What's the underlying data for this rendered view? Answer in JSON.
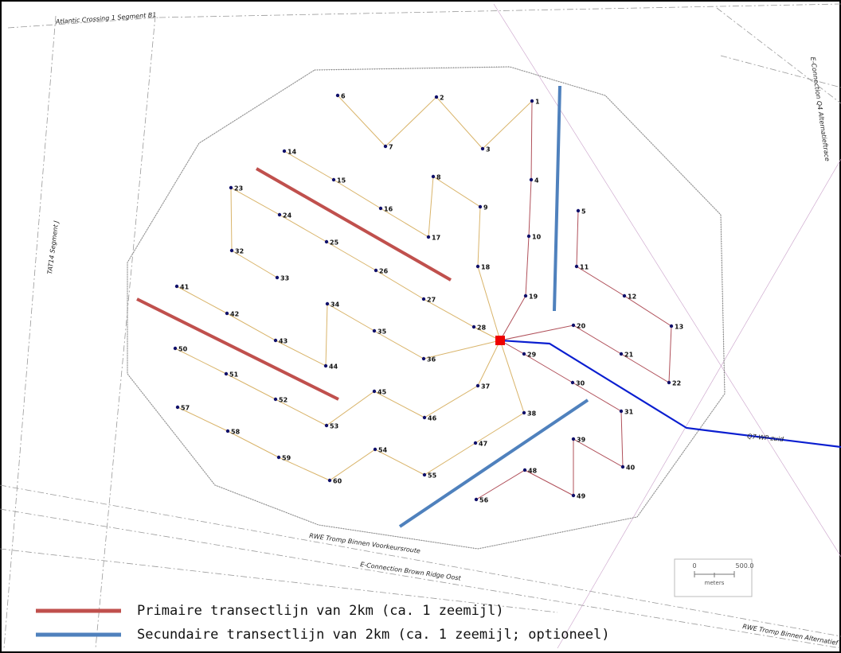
{
  "map": {
    "route_labels": [
      "Atlantic Crossing 1 Segment B1",
      "TAT14 Segment J",
      "E-Connection Q4 Alternatieftrace",
      "RWE Tromp Binnen Voorkeursroute",
      "E-Connection Brown Ridge Oost",
      "RWE Tromp Binnen Alternatief",
      "Q7-WP-zuid"
    ],
    "turbines": [
      "1",
      "2",
      "3",
      "4",
      "5",
      "6",
      "7",
      "8",
      "9",
      "10",
      "11",
      "12",
      "13",
      "14",
      "15",
      "16",
      "17",
      "18",
      "19",
      "20",
      "21",
      "22",
      "23",
      "24",
      "25",
      "26",
      "27",
      "28",
      "29",
      "30",
      "31",
      "32",
      "33",
      "34",
      "35",
      "36",
      "37",
      "38",
      "39",
      "40",
      "41",
      "42",
      "43",
      "44",
      "45",
      "46",
      "47",
      "48",
      "49",
      "50",
      "51",
      "52",
      "53",
      "54",
      "55",
      "56",
      "57",
      "58",
      "59",
      "60"
    ],
    "scale_bar": {
      "start": "0",
      "end": "500.0",
      "unit": "meters"
    },
    "legend": [
      "Primaire transectlijn van 2km (ca. 1 zeemijl)",
      "Secundaire transectlijn van 2km (ca. 1 zeemijl; optioneel)"
    ]
  }
}
